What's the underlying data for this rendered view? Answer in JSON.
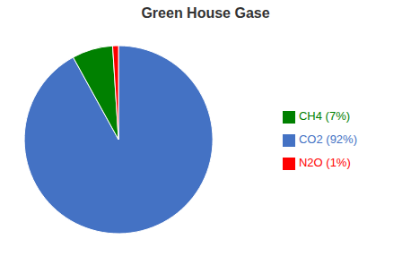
{
  "chart_data": {
    "type": "pie",
    "title": "Green House Gase",
    "categories": [
      "CO2 (92%)",
      "CH4 (7%)",
      "N2O (1%)"
    ],
    "values": [
      92,
      7,
      1
    ],
    "colors": [
      "#4472C4",
      "#008000",
      "#FF0000"
    ],
    "legend": "right"
  }
}
